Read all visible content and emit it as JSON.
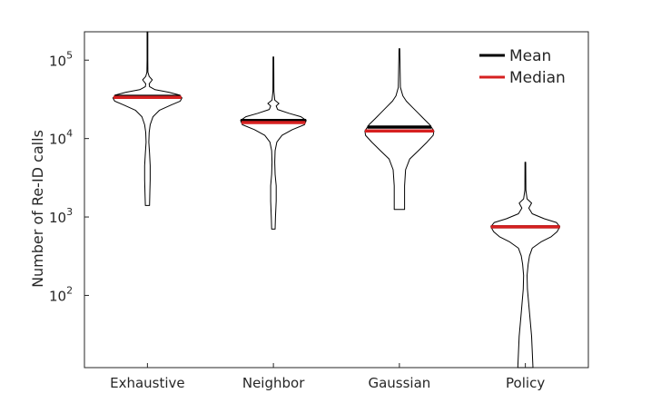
{
  "chart_data": {
    "type": "violin",
    "title": "",
    "xlabel": "",
    "ylabel": "Number of Re-ID calls",
    "yscale": "log",
    "ylim": [
      12,
      230000
    ],
    "yticks": [
      {
        "value": 100,
        "base": "10",
        "exp": "2"
      },
      {
        "value": 1000,
        "base": "10",
        "exp": "3"
      },
      {
        "value": 10000,
        "base": "10",
        "exp": "4"
      },
      {
        "value": 100000,
        "base": "10",
        "exp": "5"
      }
    ],
    "categories": [
      "Exhaustive",
      "Neighbor",
      "Gaussian",
      "Policy"
    ],
    "legend": {
      "placement": "top-right",
      "items": [
        {
          "label": "Mean",
          "color": "#000000"
        },
        {
          "label": "Median",
          "color": "#d62020"
        }
      ]
    },
    "series": [
      {
        "category": "Exhaustive",
        "mean": 34500,
        "median": 33500,
        "min": 1400,
        "max": 230000,
        "profile": [
          [
            1400,
            0.06
          ],
          [
            2000,
            0.07
          ],
          [
            3000,
            0.08
          ],
          [
            4500,
            0.08
          ],
          [
            6500,
            0.06
          ],
          [
            9000,
            0.04
          ],
          [
            12000,
            0.05
          ],
          [
            15000,
            0.08
          ],
          [
            19000,
            0.16
          ],
          [
            23000,
            0.35
          ],
          [
            27000,
            0.7
          ],
          [
            30000,
            0.95
          ],
          [
            33000,
            1.0
          ],
          [
            36000,
            0.92
          ],
          [
            39000,
            0.62
          ],
          [
            42000,
            0.22
          ],
          [
            46000,
            0.06
          ],
          [
            50000,
            0.05
          ],
          [
            56000,
            0.14
          ],
          [
            62000,
            0.05
          ],
          [
            70000,
            0.015
          ],
          [
            100000,
            0.01
          ],
          [
            230000,
            0.01
          ]
        ]
      },
      {
        "category": "Neighbor",
        "mean": 17000,
        "median": 16000,
        "min": 700,
        "max": 110000,
        "profile": [
          [
            700,
            0.05
          ],
          [
            1000,
            0.06
          ],
          [
            1600,
            0.08
          ],
          [
            2500,
            0.08
          ],
          [
            3500,
            0.05
          ],
          [
            5000,
            0.04
          ],
          [
            7000,
            0.05
          ],
          [
            9000,
            0.1
          ],
          [
            11000,
            0.25
          ],
          [
            13000,
            0.55
          ],
          [
            15000,
            0.9
          ],
          [
            17000,
            0.95
          ],
          [
            19000,
            0.8
          ],
          [
            21000,
            0.45
          ],
          [
            23500,
            0.12
          ],
          [
            26000,
            0.08
          ],
          [
            28000,
            0.16
          ],
          [
            31000,
            0.04
          ],
          [
            40000,
            0.015
          ],
          [
            110000,
            0.01
          ]
        ]
      },
      {
        "category": "Gaussian",
        "mean": 14000,
        "median": 12500,
        "min": 1250,
        "max": 140000,
        "profile": [
          [
            1250,
            0.15
          ],
          [
            2500,
            0.15
          ],
          [
            4000,
            0.18
          ],
          [
            5500,
            0.3
          ],
          [
            7000,
            0.55
          ],
          [
            9000,
            0.8
          ],
          [
            11000,
            0.98
          ],
          [
            12500,
            1.0
          ],
          [
            15000,
            0.88
          ],
          [
            18000,
            0.7
          ],
          [
            21000,
            0.55
          ],
          [
            25000,
            0.38
          ],
          [
            30000,
            0.2
          ],
          [
            35000,
            0.1
          ],
          [
            45000,
            0.03
          ],
          [
            140000,
            0.01
          ]
        ]
      },
      {
        "category": "Policy",
        "mean": 750,
        "median": 750,
        "min": 12,
        "max": 5000,
        "profile": [
          [
            12,
            0.22
          ],
          [
            30,
            0.18
          ],
          [
            60,
            0.12
          ],
          [
            120,
            0.06
          ],
          [
            180,
            0.05
          ],
          [
            250,
            0.08
          ],
          [
            320,
            0.12
          ],
          [
            400,
            0.2
          ],
          [
            480,
            0.45
          ],
          [
            560,
            0.75
          ],
          [
            650,
            0.92
          ],
          [
            750,
            1.0
          ],
          [
            850,
            0.9
          ],
          [
            950,
            0.55
          ],
          [
            1100,
            0.2
          ],
          [
            1300,
            0.1
          ],
          [
            1500,
            0.18
          ],
          [
            1700,
            0.05
          ],
          [
            2200,
            0.015
          ],
          [
            5000,
            0.01
          ]
        ]
      }
    ],
    "grid": false
  }
}
